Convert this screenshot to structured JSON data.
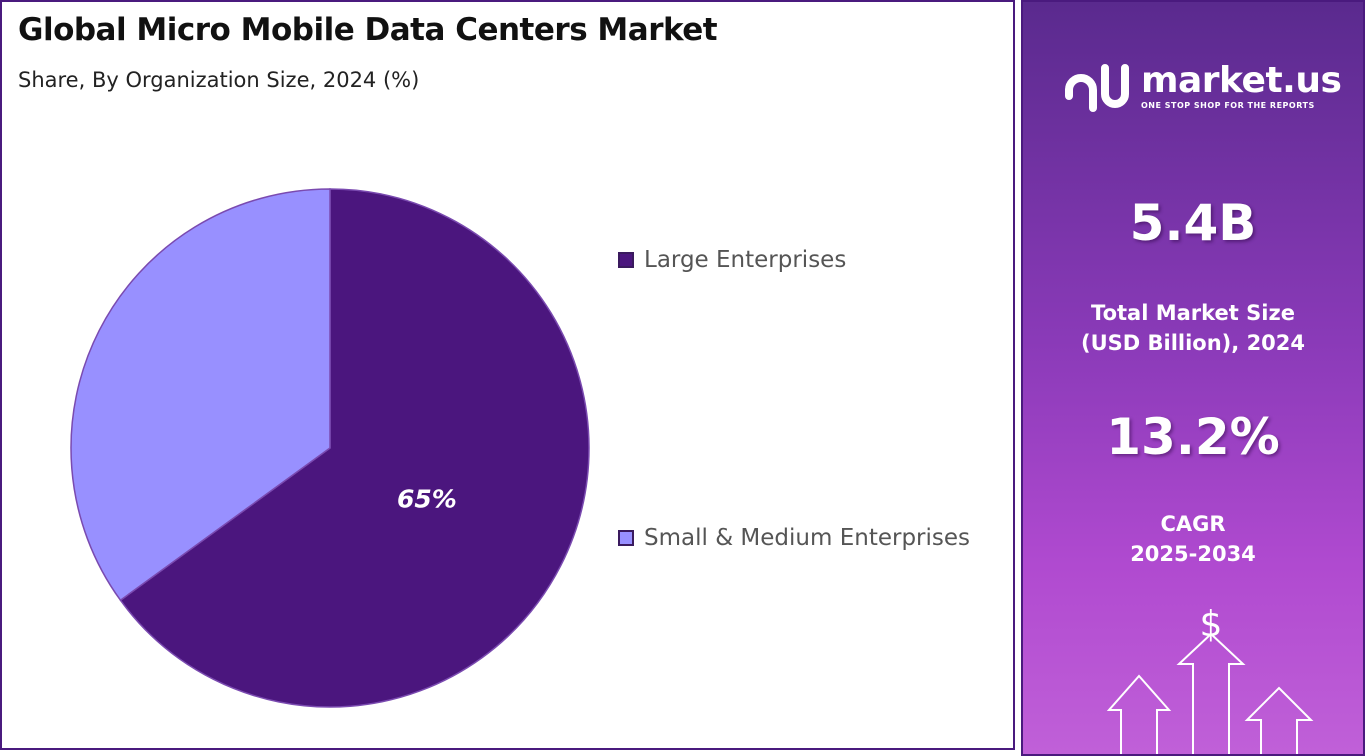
{
  "header": {
    "title": "Global Micro Mobile Data Centers Market",
    "subtitle": "Share, By Organization Size, 2024 (%)"
  },
  "chart_data": {
    "type": "pie",
    "categories": [
      "Large Enterprises",
      "Small & Medium Enterprises"
    ],
    "values": [
      65,
      35
    ],
    "colors": [
      "#4b167e",
      "#9890ff"
    ],
    "data_labels": [
      "65%",
      ""
    ],
    "legend_position": "right"
  },
  "side_panel": {
    "brand_name": "market.us",
    "brand_tagline": "ONE STOP SHOP FOR THE REPORTS",
    "market_size_value": "5.4B",
    "market_size_label_line1": "Total Market Size",
    "market_size_label_line2": "(USD Billion), 2024",
    "cagr_value": "13.2%",
    "cagr_label_line1": "CAGR",
    "cagr_label_line2": "2025-2034",
    "currency_symbol": "$"
  }
}
